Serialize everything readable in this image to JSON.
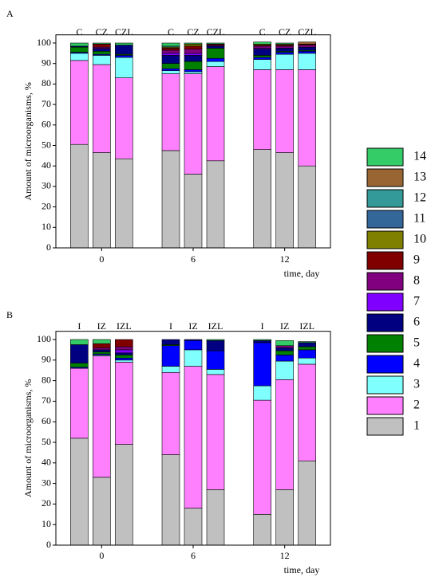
{
  "chart_data": [
    {
      "type": "stacked_bar",
      "title": "A",
      "ylabel": "Amount of microorganisms, %",
      "xlabel": "time, day",
      "x_groups": [
        "0",
        "6",
        "12"
      ],
      "categories": [
        "C",
        "CZ",
        "CZL",
        "C",
        "CZ",
        "CZL",
        "C",
        "CZ",
        "CZL"
      ],
      "ylim": [
        0,
        104
      ],
      "yticks": [
        0,
        10,
        20,
        30,
        40,
        50,
        60,
        70,
        80,
        90,
        100
      ],
      "series": [
        {
          "name": "1",
          "color": "#c0c0c0",
          "values": [
            50.5,
            46.5,
            43.5,
            47.5,
            36,
            42.5,
            48,
            46.5,
            40
          ]
        },
        {
          "name": "2",
          "color": "#ff80ff",
          "values": [
            41,
            43,
            39.5,
            37.5,
            49,
            46,
            39,
            40.5,
            47
          ]
        },
        {
          "name": "3",
          "color": "#80ffff",
          "values": [
            3.5,
            4.5,
            10,
            1.5,
            1,
            2.5,
            5,
            7.5,
            8
          ]
        },
        {
          "name": "4",
          "color": "#0000ff",
          "values": [
            0.5,
            0.5,
            1,
            1,
            1,
            1.5,
            1,
            1,
            1
          ]
        },
        {
          "name": "5",
          "color": "#008000",
          "values": [
            2.5,
            1.5,
            0.5,
            2.5,
            4,
            5,
            1,
            0.5,
            0.5
          ]
        },
        {
          "name": "6",
          "color": "#000080",
          "values": [
            0.5,
            1,
            4.5,
            4,
            3,
            1,
            3,
            1.5,
            1.5
          ]
        },
        {
          "name": "7",
          "color": "#8000ff",
          "values": [
            0,
            0.5,
            0,
            1,
            1,
            0,
            0.5,
            0,
            0
          ]
        },
        {
          "name": "8",
          "color": "#800080",
          "values": [
            0,
            0.5,
            0,
            1.5,
            2,
            0.5,
            1,
            1,
            1
          ]
        },
        {
          "name": "9",
          "color": "#800000",
          "values": [
            0,
            1.5,
            0,
            1,
            1.5,
            0.5,
            0.5,
            0.5,
            0.5
          ]
        },
        {
          "name": "10",
          "color": "#808000",
          "values": [
            0,
            0,
            0,
            0.5,
            1,
            0,
            0.5,
            0,
            0
          ]
        },
        {
          "name": "11",
          "color": "#336699",
          "values": [
            0,
            0,
            0,
            0,
            0,
            0,
            0,
            0,
            0
          ]
        },
        {
          "name": "12",
          "color": "#339999",
          "values": [
            0,
            0,
            0,
            0.5,
            0,
            0,
            0,
            0,
            0
          ]
        },
        {
          "name": "13",
          "color": "#996633",
          "values": [
            0,
            0,
            0,
            0,
            0,
            0,
            0,
            0.5,
            1
          ]
        },
        {
          "name": "14",
          "color": "#33cc66",
          "values": [
            1.5,
            0.5,
            1,
            1.5,
            0.5,
            0.5,
            1,
            0.5,
            0
          ]
        }
      ]
    },
    {
      "type": "stacked_bar",
      "title": "B",
      "ylabel": "Amount of microorganisms, %",
      "xlabel": "time, day",
      "x_groups": [
        "0",
        "6",
        "12"
      ],
      "categories": [
        "I",
        "IZ",
        "IZL",
        "I",
        "IZ",
        "IZL",
        "I",
        "IZ",
        "IZL"
      ],
      "ylim": [
        0,
        104
      ],
      "yticks": [
        0,
        10,
        20,
        30,
        40,
        50,
        60,
        70,
        80,
        90,
        100
      ],
      "series": [
        {
          "color": "#c0c0c0",
          "values": [
            52,
            33,
            49,
            44,
            18,
            27,
            15,
            27,
            41
          ]
        },
        {
          "color": "#ff80ff",
          "values": [
            34,
            59,
            40,
            40,
            69,
            56,
            55.5,
            53.5,
            47
          ]
        },
        {
          "color": "#80ffff",
          "values": [
            0,
            0.5,
            1,
            3,
            8,
            2.5,
            7,
            9,
            3
          ]
        },
        {
          "color": "#0000ff",
          "values": [
            0.5,
            0.5,
            1,
            10,
            4.5,
            9,
            21,
            3,
            4
          ]
        },
        {
          "color": "#008000",
          "values": [
            2,
            1,
            1.5,
            0.5,
            0,
            0,
            0,
            2,
            1.5
          ]
        },
        {
          "color": "#000080",
          "values": [
            9,
            1,
            1,
            2.5,
            0.5,
            5,
            1,
            1.5,
            2
          ]
        },
        {
          "color": "#8000ff",
          "values": [
            0,
            0,
            1.5,
            0,
            0,
            0,
            0,
            0,
            0
          ]
        },
        {
          "color": "#800080",
          "values": [
            0,
            1,
            1.5,
            0,
            0,
            0,
            0,
            1,
            0
          ]
        },
        {
          "color": "#800000",
          "values": [
            0,
            2,
            3.5,
            0,
            0,
            0,
            0,
            0,
            0
          ]
        },
        {
          "color": "#808000",
          "values": [
            0,
            0,
            0,
            0,
            0,
            0,
            0,
            0,
            0
          ]
        },
        {
          "color": "#336699",
          "values": [
            0,
            0,
            0,
            0,
            0,
            0,
            0,
            0,
            0
          ]
        },
        {
          "color": "#339999",
          "values": [
            0,
            0,
            0,
            0,
            0,
            0,
            0,
            0,
            0
          ]
        },
        {
          "color": "#996633",
          "values": [
            0,
            0,
            0,
            0,
            0,
            0,
            0,
            0,
            0
          ]
        },
        {
          "color": "#33cc66",
          "values": [
            2.5,
            2,
            0,
            0,
            0,
            0.5,
            0.5,
            2.5,
            0.5
          ]
        }
      ]
    }
  ]
}
